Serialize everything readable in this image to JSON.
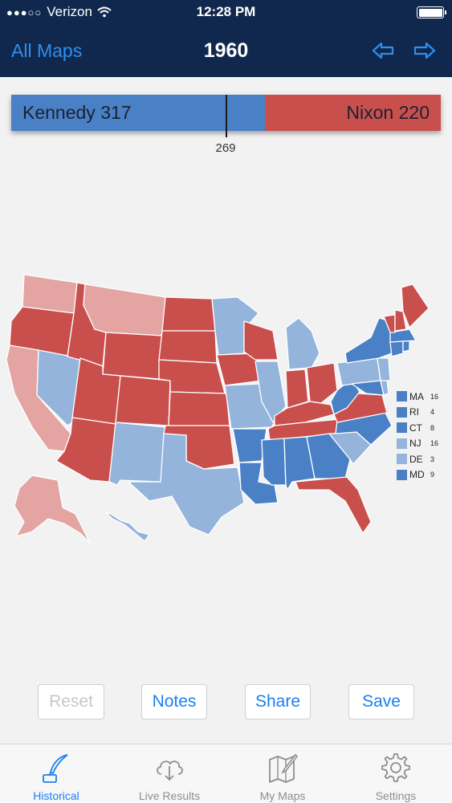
{
  "status": {
    "carrier": "Verizon",
    "time": "12:28 PM"
  },
  "nav": {
    "back_label": "All Maps",
    "title": "1960",
    "prev_icon": "arrow-left-icon",
    "next_icon": "arrow-right-icon"
  },
  "tally": {
    "dem_label": "Kennedy 317",
    "rep_label": "Nixon 220",
    "threshold": "269"
  },
  "colors": {
    "dem_safe": "#4a80c6",
    "dem_lean": "#94b4dc",
    "rep_safe": "#c94f4d",
    "rep_lean": "#e3a4a2",
    "nav_bg": "#11284e",
    "accent": "#1a7ff0"
  },
  "legend": [
    {
      "abbr": "MA",
      "ev": "16",
      "color": "#4a80c6"
    },
    {
      "abbr": "RI",
      "ev": "4",
      "color": "#4a80c6"
    },
    {
      "abbr": "CT",
      "ev": "8",
      "color": "#4a80c6"
    },
    {
      "abbr": "NJ",
      "ev": "16",
      "color": "#94b4dc"
    },
    {
      "abbr": "DE",
      "ev": "3",
      "color": "#94b4dc"
    },
    {
      "abbr": "MD",
      "ev": "9",
      "color": "#4a80c6"
    }
  ],
  "actions": {
    "reset": "Reset",
    "notes": "Notes",
    "share": "Share",
    "save": "Save"
  },
  "tabs": [
    {
      "label": "Historical",
      "icon": "quill-inkwell-icon",
      "active": true
    },
    {
      "label": "Live Results",
      "icon": "cloud-download-icon",
      "active": false
    },
    {
      "label": "My Maps",
      "icon": "map-pencil-icon",
      "active": false
    },
    {
      "label": "Settings",
      "icon": "gear-icon",
      "active": false
    }
  ]
}
